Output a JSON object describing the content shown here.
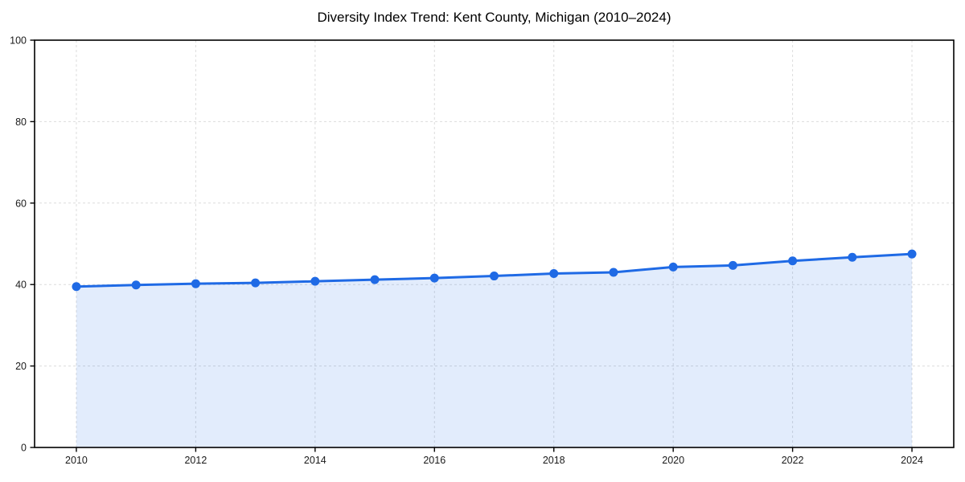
{
  "page": {
    "background": "#ffffff"
  },
  "chart_data": {
    "type": "area",
    "title": "Diversity Index Trend: Kent County, Michigan (2010–2024)",
    "x": [
      2010,
      2011,
      2012,
      2013,
      2014,
      2015,
      2016,
      2017,
      2018,
      2019,
      2020,
      2021,
      2022,
      2023,
      2024
    ],
    "series": [
      {
        "name": "Diversity Index",
        "values": [
          39.5,
          39.9,
          40.2,
          40.4,
          40.8,
          41.2,
          41.6,
          42.1,
          42.7,
          43.0,
          44.3,
          44.7,
          45.8,
          46.7,
          47.5
        ]
      }
    ],
    "xlabel": "",
    "ylabel": "",
    "xlim": [
      2009.3,
      2024.7
    ],
    "ylim": [
      0,
      100
    ],
    "xticks": [
      2010,
      2012,
      2014,
      2016,
      2018,
      2020,
      2022,
      2024
    ],
    "yticks": [
      0,
      20,
      40,
      60,
      80,
      100
    ],
    "grid": true,
    "grid_style": "dashed",
    "legend": "none",
    "marker": "circle",
    "colors": {
      "line": "#1f6ae5",
      "fill": "rgba(31,106,229,0.13)",
      "grid": "#dcdcdc",
      "axis": "#000000",
      "tick_text": "#1a1a1a",
      "title_text": "#000000"
    }
  }
}
